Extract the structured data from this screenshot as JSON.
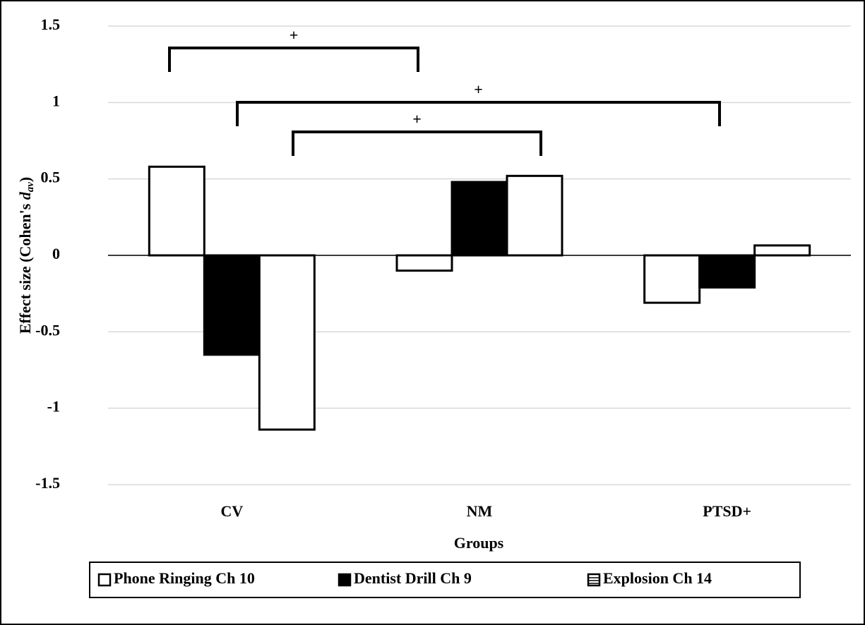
{
  "chart_data": {
    "type": "bar",
    "categories": [
      "CV",
      "NM",
      "PTSD+"
    ],
    "series": [
      {
        "name": "Phone Ringing Ch 10",
        "color": "#ffffff",
        "values": [
          0.58,
          -0.1,
          -0.31
        ]
      },
      {
        "name": "Dentist Drill Ch 9",
        "color": "#000000",
        "values": [
          -0.65,
          0.48,
          -0.21
        ]
      },
      {
        "name": "Explosion Ch 14",
        "color": "#ffffff",
        "values": [
          -1.14,
          0.52,
          0.065
        ]
      }
    ],
    "ylim": [
      -1.5,
      1.5
    ],
    "yticks": [
      -1.5,
      -1,
      -0.5,
      0,
      0.5,
      1,
      1.5
    ],
    "grid": true,
    "xlabel": "Groups",
    "ylabel": {
      "text": "Effect size (Cohen's ",
      "italic": "d",
      "subscript": "av",
      "end": ")"
    },
    "annotations": [
      "+",
      "+",
      "+"
    ],
    "legend": "bottom"
  }
}
